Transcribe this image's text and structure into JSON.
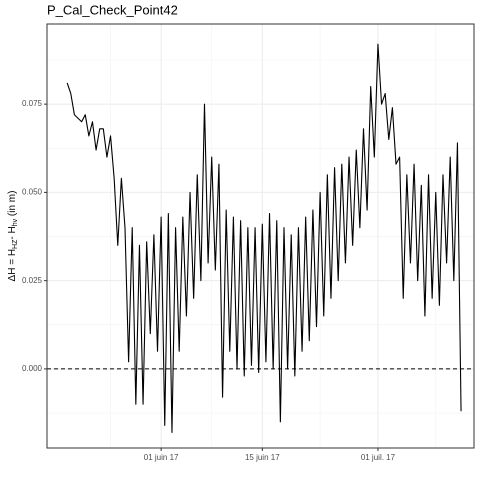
{
  "chart_data": {
    "type": "line",
    "title": "P_Cal_Check_Point42",
    "ylabel": [
      {
        "text": "ΔH = H"
      },
      {
        "text": "HZ",
        "sub": true
      },
      {
        "text": "- H"
      },
      {
        "text": "hv",
        "sub": true
      },
      {
        "text": " (in m)"
      }
    ],
    "xlim": [
      "2017-05-16T05:00",
      "2017-07-14T07:00"
    ],
    "xticks": [
      {
        "value": "2017-06-01T00:00",
        "label": "01 juin 17"
      },
      {
        "value": "2017-06-15T00:00",
        "label": "15 juin 17"
      },
      {
        "value": "2017-07-01T00:00",
        "label": "01 juil. 17"
      }
    ],
    "ylim": [
      -0.0224,
      0.0977
    ],
    "yticks": [
      {
        "value": 0,
        "label": "0.000"
      },
      0.025,
      {
        "value": 0.05,
        "label": "0.050"
      },
      0.075
    ],
    "grid": true,
    "reference_line": 0,
    "color": "#000000",
    "x": [
      "2017-05-19T00:00",
      "2017-05-19T12:00",
      "2017-05-20T00:00",
      "2017-05-20T12:00",
      "2017-05-21T00:00",
      "2017-05-21T12:00",
      "2017-05-22T00:00",
      "2017-05-22T12:00",
      "2017-05-23T00:00",
      "2017-05-23T12:00",
      "2017-05-24T00:00",
      "2017-05-24T12:00",
      "2017-05-25T00:00",
      "2017-05-25T12:00",
      "2017-05-26T00:00",
      "2017-05-26T12:00",
      "2017-05-27T00:00",
      "2017-05-27T12:00",
      "2017-05-28T00:00",
      "2017-05-28T12:00",
      "2017-05-29T00:00",
      "2017-05-29T12:00",
      "2017-05-30T00:00",
      "2017-05-30T12:00",
      "2017-05-31T00:00",
      "2017-05-31T12:00",
      "2017-06-01T00:00",
      "2017-06-01T12:00",
      "2017-06-02T00:00",
      "2017-06-02T12:00",
      "2017-06-03T00:00",
      "2017-06-03T12:00",
      "2017-06-04T00:00",
      "2017-06-04T12:00",
      "2017-06-05T00:00",
      "2017-06-05T12:00",
      "2017-06-06T00:00",
      "2017-06-06T12:00",
      "2017-06-07T00:00",
      "2017-06-07T12:00",
      "2017-06-08T00:00",
      "2017-06-08T12:00",
      "2017-06-09T00:00",
      "2017-06-09T12:00",
      "2017-06-10T00:00",
      "2017-06-10T12:00",
      "2017-06-11T00:00",
      "2017-06-11T12:00",
      "2017-06-12T00:00",
      "2017-06-12T12:00",
      "2017-06-13T00:00",
      "2017-06-13T12:00",
      "2017-06-14T00:00",
      "2017-06-14T12:00",
      "2017-06-15T00:00",
      "2017-06-15T12:00",
      "2017-06-16T00:00",
      "2017-06-16T12:00",
      "2017-06-17T00:00",
      "2017-06-17T12:00",
      "2017-06-18T00:00",
      "2017-06-18T12:00",
      "2017-06-19T00:00",
      "2017-06-19T12:00",
      "2017-06-20T00:00",
      "2017-06-20T12:00",
      "2017-06-21T00:00",
      "2017-06-21T12:00",
      "2017-06-22T00:00",
      "2017-06-22T12:00",
      "2017-06-23T00:00",
      "2017-06-23T12:00",
      "2017-06-24T00:00",
      "2017-06-24T12:00",
      "2017-06-25T00:00",
      "2017-06-25T12:00",
      "2017-06-26T00:00",
      "2017-06-26T12:00",
      "2017-06-27T00:00",
      "2017-06-27T12:00",
      "2017-06-28T00:00",
      "2017-06-28T12:00",
      "2017-06-29T00:00",
      "2017-06-29T12:00",
      "2017-06-30T00:00",
      "2017-06-30T12:00",
      "2017-07-01T00:00",
      "2017-07-01T12:00",
      "2017-07-02T00:00",
      "2017-07-02T12:00",
      "2017-07-03T00:00",
      "2017-07-03T12:00",
      "2017-07-04T00:00",
      "2017-07-04T12:00",
      "2017-07-05T00:00",
      "2017-07-05T12:00",
      "2017-07-06T00:00",
      "2017-07-06T12:00",
      "2017-07-07T00:00",
      "2017-07-07T12:00",
      "2017-07-08T00:00",
      "2017-07-08T12:00",
      "2017-07-09T00:00",
      "2017-07-09T12:00",
      "2017-07-10T00:00",
      "2017-07-10T12:00",
      "2017-07-11T00:00",
      "2017-07-11T12:00",
      "2017-07-12T00:00",
      "2017-07-12T12:00"
    ],
    "values": [
      0.081,
      0.078,
      0.072,
      0.071,
      0.07,
      0.072,
      0.066,
      0.07,
      0.062,
      0.068,
      0.068,
      0.06,
      0.066,
      0.054,
      0.035,
      0.054,
      0.04,
      0.002,
      0.04,
      -0.01,
      0.035,
      -0.01,
      0.036,
      0.01,
      0.038,
      0.005,
      0.043,
      -0.016,
      0.044,
      -0.018,
      0.04,
      0.005,
      0.043,
      0.015,
      0.05,
      0.02,
      0.055,
      0.025,
      0.075,
      0.03,
      0.06,
      0.028,
      0.058,
      -0.008,
      0.045,
      0.005,
      0.043,
      0.0,
      0.042,
      -0.002,
      0.04,
      0.001,
      0.04,
      -0.001,
      0.041,
      0.002,
      0.044,
      0.0,
      0.042,
      -0.015,
      0.04,
      0.0,
      0.038,
      -0.002,
      0.04,
      0.005,
      0.043,
      0.008,
      0.045,
      0.012,
      0.05,
      0.015,
      0.055,
      0.02,
      0.057,
      0.025,
      0.058,
      0.03,
      0.06,
      0.035,
      0.062,
      0.04,
      0.068,
      0.045,
      0.08,
      0.06,
      0.092,
      0.075,
      0.078,
      0.065,
      0.074,
      0.058,
      0.06,
      0.02,
      0.055,
      0.03,
      0.058,
      0.025,
      0.052,
      0.015,
      0.055,
      0.02,
      0.05,
      0.018,
      0.055,
      0.03,
      0.06,
      0.025,
      0.064,
      -0.012
    ]
  }
}
